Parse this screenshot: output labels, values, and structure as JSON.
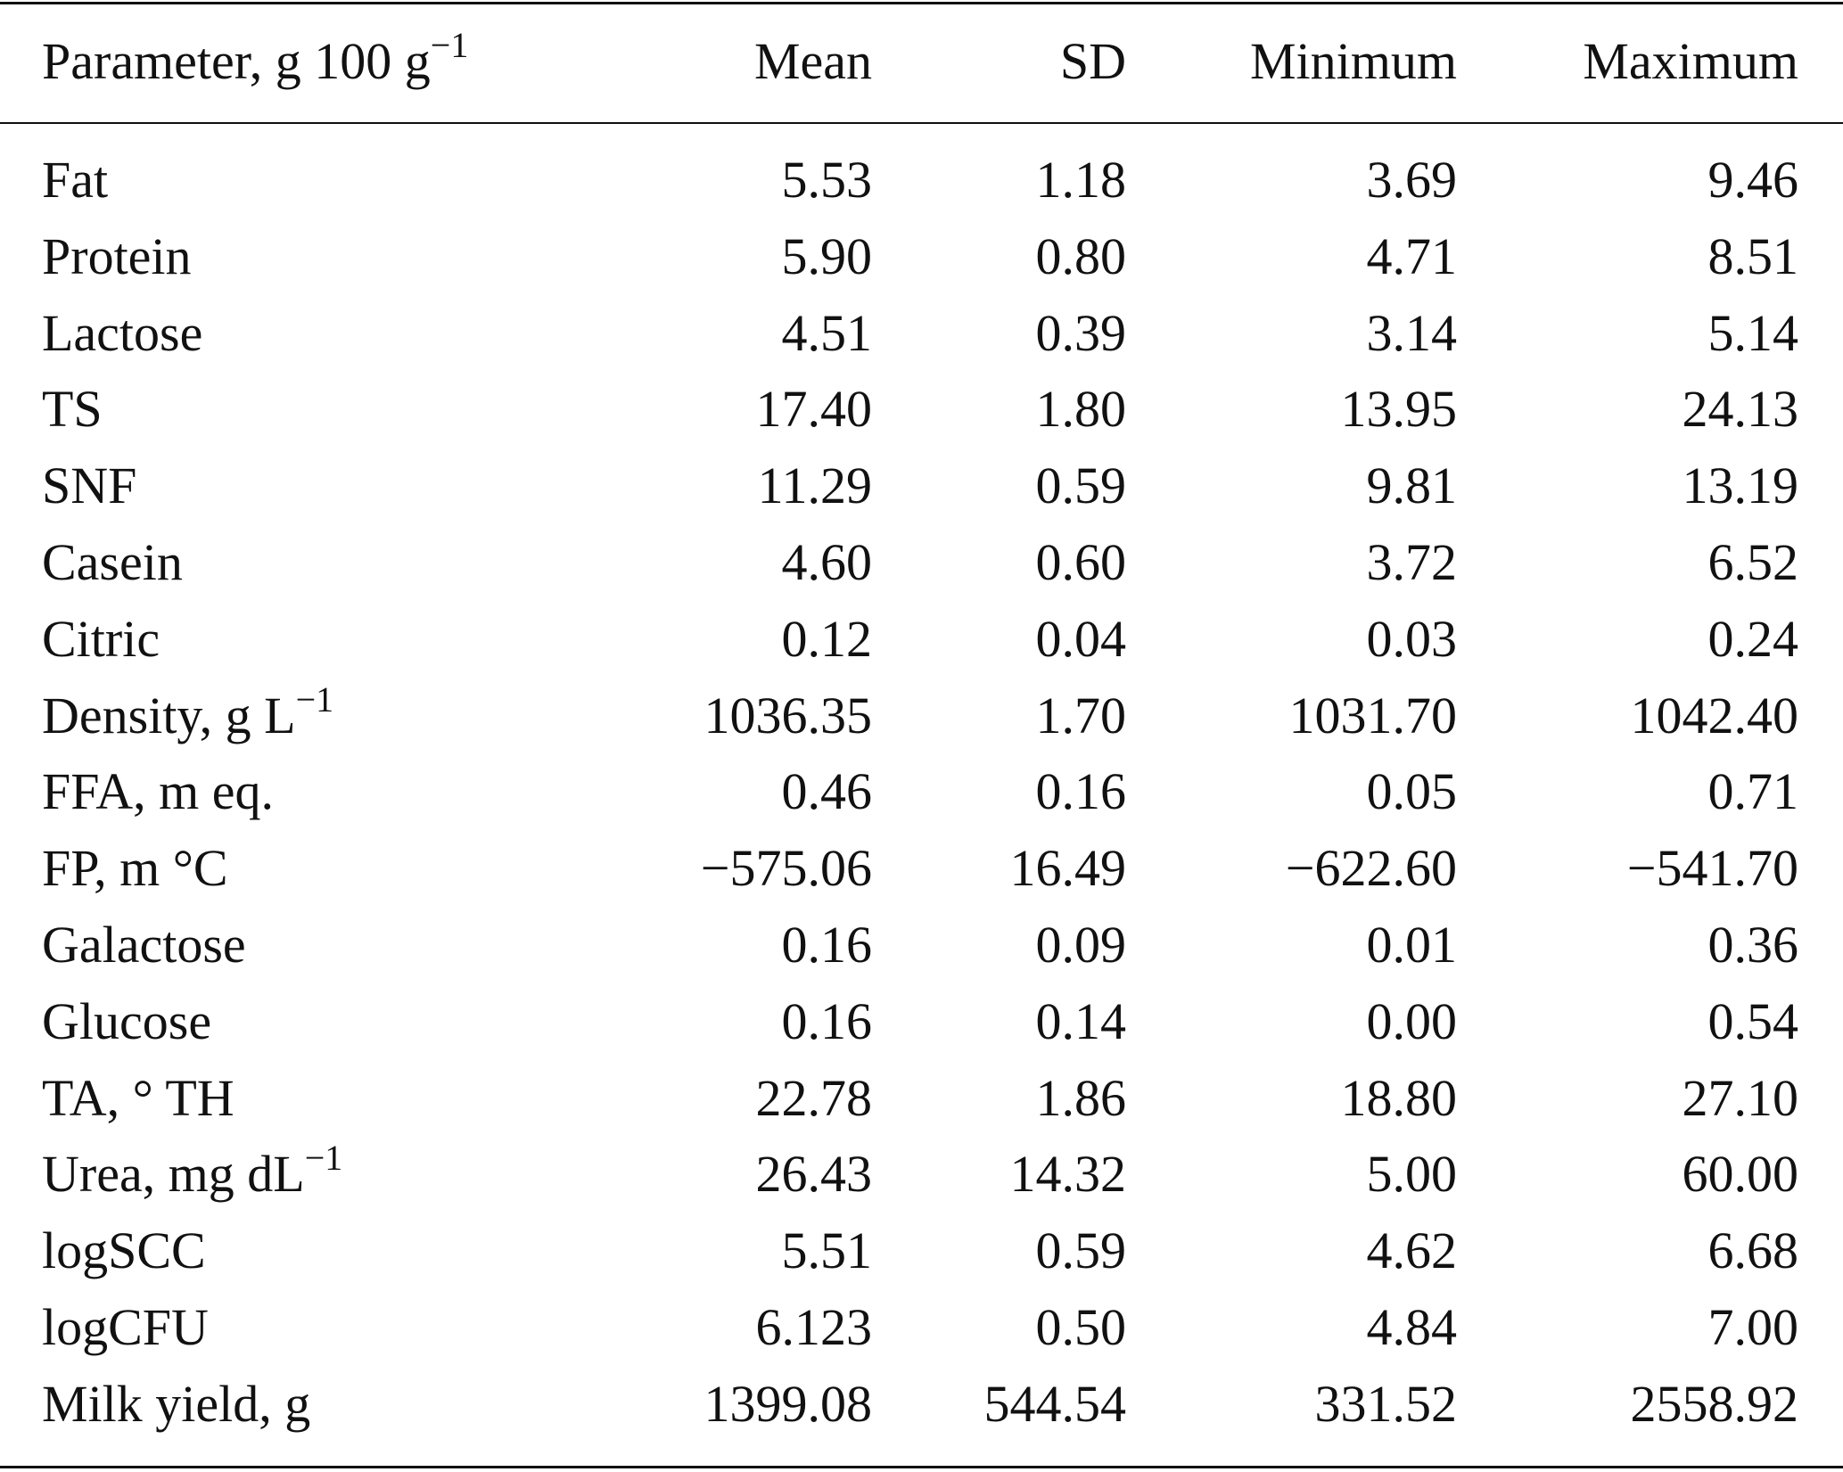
{
  "table": {
    "headers": [
      "Parameter, g 100 g",
      "Mean",
      "SD",
      "Minimum",
      "Maximum"
    ],
    "header_sup": "−1",
    "rows": [
      {
        "param": "Fat",
        "sup": "",
        "values": [
          "5.53",
          "1.18",
          "3.69",
          "9.46"
        ]
      },
      {
        "param": "Protein",
        "sup": "",
        "values": [
          "5.90",
          "0.80",
          "4.71",
          "8.51"
        ]
      },
      {
        "param": "Lactose",
        "sup": "",
        "values": [
          "4.51",
          "0.39",
          "3.14",
          "5.14"
        ]
      },
      {
        "param": "TS",
        "sup": "",
        "values": [
          "17.40",
          "1.80",
          "13.95",
          "24.13"
        ]
      },
      {
        "param": "SNF",
        "sup": "",
        "values": [
          "11.29",
          "0.59",
          "9.81",
          "13.19"
        ]
      },
      {
        "param": "Casein",
        "sup": "",
        "values": [
          "4.60",
          "0.60",
          "3.72",
          "6.52"
        ]
      },
      {
        "param": "Citric",
        "sup": "",
        "values": [
          "0.12",
          "0.04",
          "0.03",
          "0.24"
        ]
      },
      {
        "param": "Density, g L",
        "sup": "−1",
        "values": [
          "1036.35",
          "1.70",
          "1031.70",
          "1042.40"
        ]
      },
      {
        "param": "FFA, m eq.",
        "sup": "",
        "values": [
          "0.46",
          "0.16",
          "0.05",
          "0.71"
        ]
      },
      {
        "param": "FP, m °C",
        "sup": "",
        "values": [
          "−575.06",
          "16.49",
          "−622.60",
          "−541.70"
        ]
      },
      {
        "param": "Galactose",
        "sup": "",
        "values": [
          "0.16",
          "0.09",
          "0.01",
          "0.36"
        ]
      },
      {
        "param": "Glucose",
        "sup": "",
        "values": [
          "0.16",
          "0.14",
          "0.00",
          "0.54"
        ]
      },
      {
        "param": "TA, ° TH",
        "sup": "",
        "values": [
          "22.78",
          "1.86",
          "18.80",
          "27.10"
        ]
      },
      {
        "param": "Urea, mg dL",
        "sup": "−1",
        "values": [
          "26.43",
          "14.32",
          "5.00",
          "60.00"
        ]
      },
      {
        "param": "logSCC",
        "sup": "",
        "values": [
          "5.51",
          "0.59",
          "4.62",
          "6.68"
        ]
      },
      {
        "param": "logCFU",
        "sup": "",
        "values": [
          "6.123",
          "0.50",
          "4.84",
          "7.00"
        ]
      },
      {
        "param": "Milk yield, g",
        "sup": "",
        "values": [
          "1399.08",
          "544.54",
          "331.52",
          "2558.92"
        ]
      }
    ]
  }
}
